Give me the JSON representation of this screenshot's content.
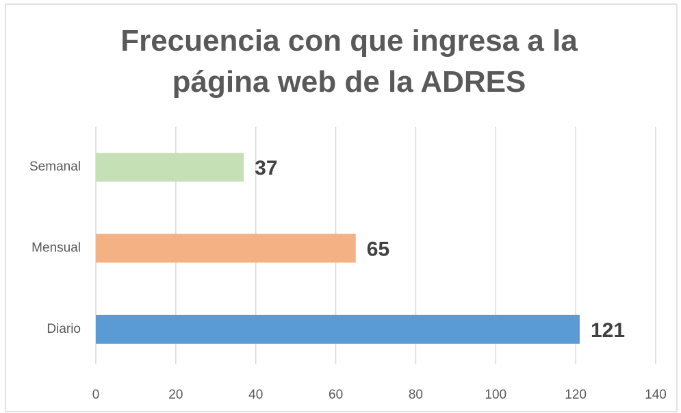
{
  "chart_data": {
    "type": "barh",
    "title": "Frecuencia con que ingresa a la página web de la ADRES",
    "categories": [
      "Semanal",
      "Mensual",
      "Diario"
    ],
    "values": [
      37,
      65,
      121
    ],
    "colors": [
      "#c5e0b4",
      "#f4b183",
      "#5b9bd5"
    ],
    "xlim": [
      0,
      140
    ],
    "xticks": [
      0,
      20,
      40,
      60,
      80,
      100,
      120,
      140
    ],
    "grid": true
  }
}
